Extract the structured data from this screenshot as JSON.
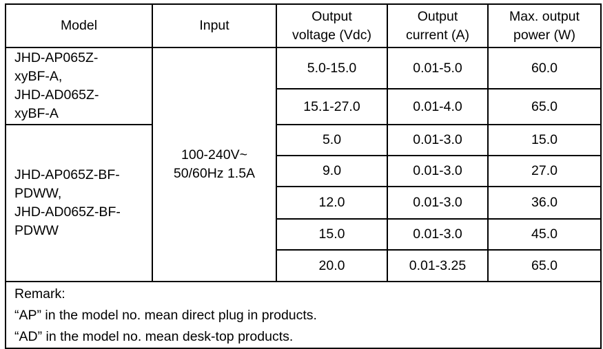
{
  "headers": [
    "Model",
    "Input",
    "Output voltage (Vdc)",
    "Output current (A)",
    "Max. output power (W)"
  ],
  "header_lines": {
    "voltage": [
      "Output",
      "voltage (Vdc)"
    ],
    "current": [
      "Output",
      "current (A)"
    ],
    "power": [
      "Max. output",
      "power (W)"
    ]
  },
  "input": [
    "100-240V~",
    "50/60Hz 1.5A"
  ],
  "groups": [
    {
      "model_lines": [
        "JHD-AP065Z-",
        "xyBF-A,",
        "JHD-AD065Z-",
        "xyBF-A"
      ],
      "rows": [
        {
          "voltage": "5.0-15.0",
          "current": "0.01-5.0",
          "power": "60.0"
        },
        {
          "voltage": "15.1-27.0",
          "current": "0.01-4.0",
          "power": "65.0"
        }
      ]
    },
    {
      "model_lines": [
        "JHD-AP065Z-BF-",
        "PDWW,",
        "JHD-AD065Z-BF-",
        "PDWW"
      ],
      "rows": [
        {
          "voltage": "5.0",
          "current": "0.01-3.0",
          "power": "15.0"
        },
        {
          "voltage": "9.0",
          "current": "0.01-3.0",
          "power": "27.0"
        },
        {
          "voltage": "12.0",
          "current": "0.01-3.0",
          "power": "36.0"
        },
        {
          "voltage": "15.0",
          "current": "0.01-3.0",
          "power": "45.0"
        },
        {
          "voltage": "20.0",
          "current": "0.01-3.25",
          "power": "65.0"
        }
      ]
    }
  ],
  "remark": {
    "title": "Remark:",
    "lines": [
      "“AP” in the model no. mean direct plug in products.",
      "“AD” in the model no. mean desk-top products."
    ]
  }
}
